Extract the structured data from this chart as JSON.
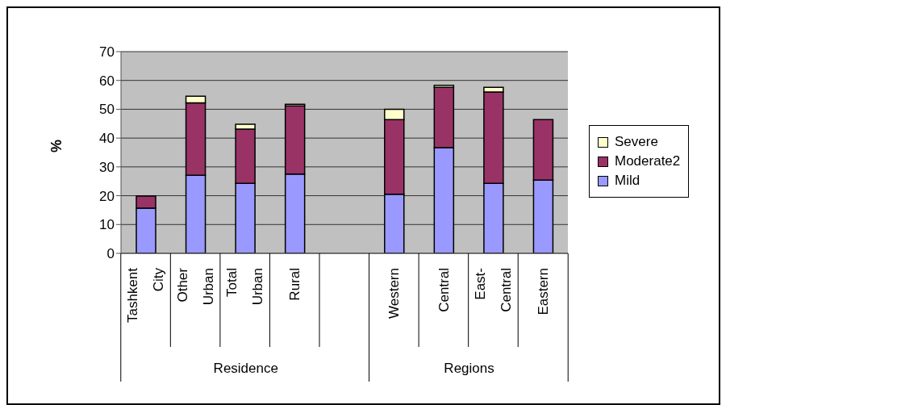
{
  "chart_data": {
    "type": "bar",
    "stacked": true,
    "ylabel": "%",
    "categories": [
      "Tashkent City",
      "Other Urban",
      "Total Urban",
      "Rural",
      null,
      "Western",
      "Central",
      "East-Central",
      "Eastern"
    ],
    "series": [
      {
        "name": "Mild",
        "color": "#9999ff",
        "values": [
          15.7,
          27.1,
          24.3,
          27.5,
          null,
          20.5,
          36.7,
          24.3,
          25.4
        ]
      },
      {
        "name": "Moderate2",
        "color": "#993366",
        "values": [
          4.2,
          25.1,
          18.8,
          23.7,
          null,
          25.9,
          20.9,
          31.7,
          21
        ]
      },
      {
        "name": "Severe",
        "color": "#ffffcc",
        "values": [
          null,
          2.3,
          1.7,
          0.5,
          null,
          3.6,
          0.7,
          1.6,
          null
        ]
      }
    ],
    "ylim": [
      0,
      70
    ],
    "yticks": [
      0,
      10,
      20,
      30,
      40,
      50,
      60,
      70
    ],
    "grid": "y",
    "legend": "right",
    "annotations": [
      "Residence",
      "Regions"
    ]
  }
}
